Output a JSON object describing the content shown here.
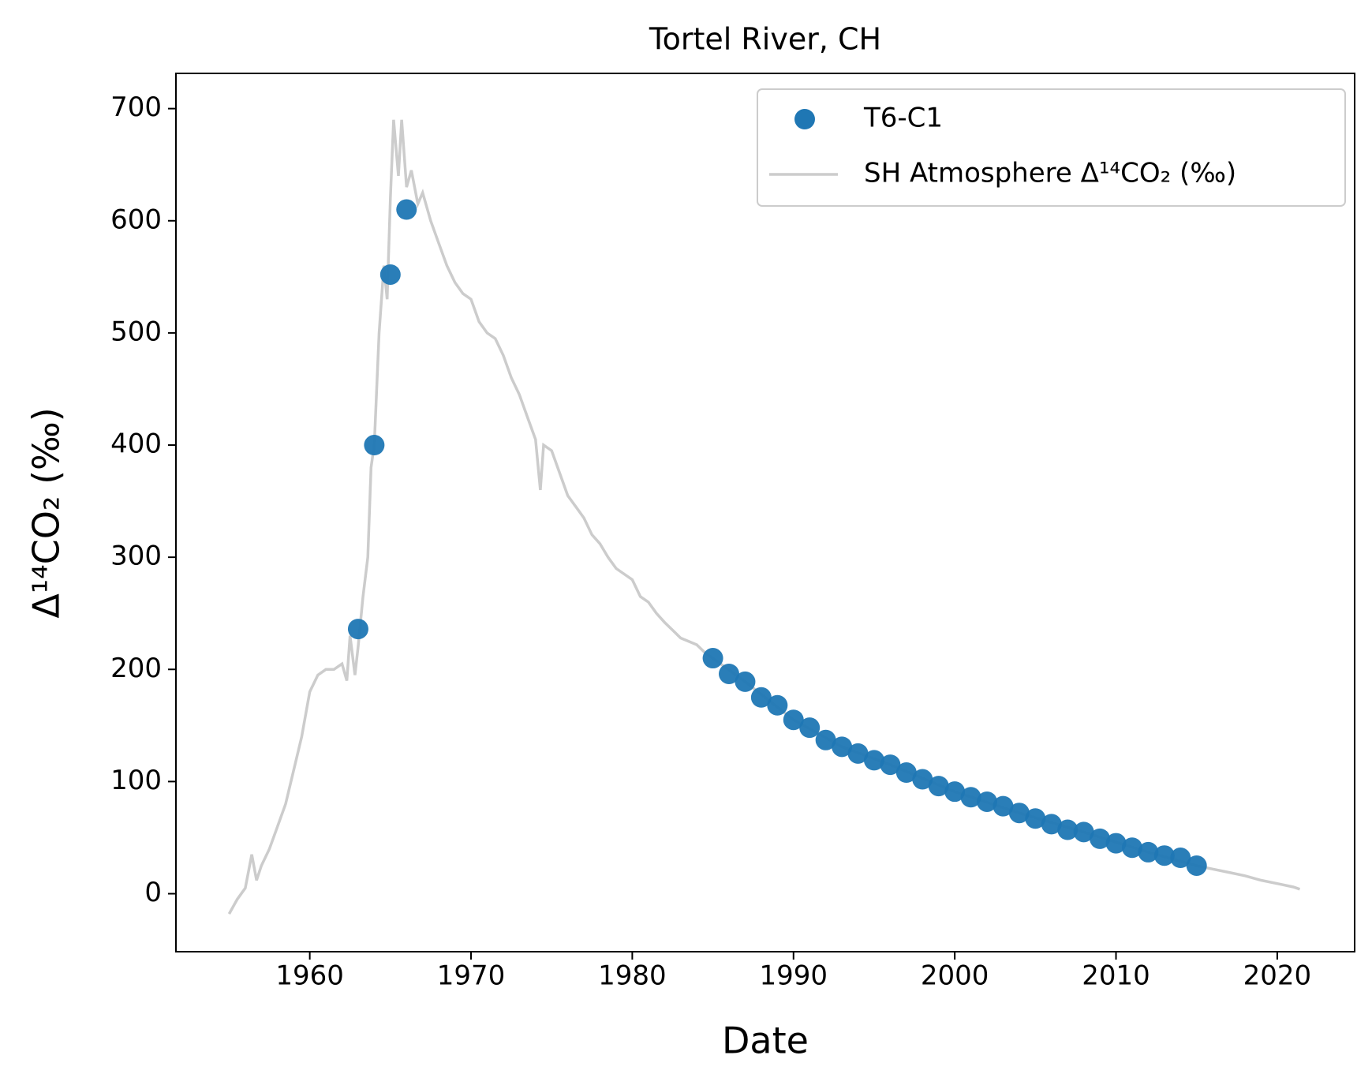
{
  "chart_data": {
    "type": "scatter",
    "title": "Tortel River, CH",
    "x_label": "Date",
    "y_label": "Δ¹⁴CO₂ (‰)",
    "legend": "upper right",
    "xlim": [
      1951.7,
      2024.8
    ],
    "ylim": [
      -51.7,
      731.4
    ],
    "xticks": [
      1960,
      1970,
      1980,
      1990,
      2000,
      2010,
      2020
    ],
    "yticks": [
      0,
      100,
      200,
      300,
      400,
      500,
      600,
      700
    ],
    "series": [
      {
        "name": "T6-C1",
        "type": "scatter",
        "color": "#1f77b4",
        "x": [
          1963,
          1964,
          1965,
          1966,
          1985,
          1986,
          1987,
          1988,
          1989,
          1990,
          1991,
          1992,
          1993,
          1994,
          1995,
          1996,
          1997,
          1998,
          1999,
          2000,
          2001,
          2002,
          2003,
          2004,
          2005,
          2006,
          2007,
          2008,
          2009,
          2010,
          2011,
          2012,
          2013,
          2014,
          2015
        ],
        "values": [
          236,
          400,
          552,
          610,
          210,
          196,
          189,
          175,
          168,
          155,
          148,
          137,
          131,
          125,
          119,
          115,
          108,
          102,
          96,
          91,
          86,
          82,
          78,
          72,
          67,
          62,
          57,
          55,
          49,
          45,
          41,
          37,
          34,
          32,
          25
        ]
      },
      {
        "name": "SH Atmosphere Δ¹⁴CO₂ (‰)",
        "type": "line",
        "color": "#cccccc",
        "x": [
          1955,
          1955.5,
          1956,
          1956.4,
          1956.7,
          1957,
          1957.5,
          1958,
          1958.5,
          1959,
          1959.5,
          1960,
          1960.5,
          1961,
          1961.5,
          1962,
          1962.3,
          1962.5,
          1962.8,
          1963,
          1963.3,
          1963.6,
          1963.8,
          1964,
          1964.3,
          1964.6,
          1964.8,
          1965,
          1965.2,
          1965.5,
          1965.7,
          1966,
          1966.3,
          1966.7,
          1967,
          1967.5,
          1968,
          1968.5,
          1969,
          1969.5,
          1970,
          1970.5,
          1971,
          1971.5,
          1972,
          1972.5,
          1973,
          1973.5,
          1974,
          1974.3,
          1974.5,
          1975,
          1975.5,
          1976,
          1976.5,
          1977,
          1977.5,
          1978,
          1978.5,
          1979,
          1979.5,
          1980,
          1980.5,
          1981,
          1981.5,
          1982,
          1982.5,
          1983,
          1983.5,
          1984,
          1984.5,
          1985,
          1987,
          1990,
          1993,
          1996,
          2000,
          2004,
          2008,
          2012,
          2015,
          2016,
          2017,
          2018,
          2019,
          2020,
          2021,
          2021.4
        ],
        "values": [
          -18,
          -5,
          5,
          35,
          12,
          25,
          40,
          60,
          80,
          110,
          140,
          180,
          195,
          200,
          200,
          205,
          190,
          230,
          195,
          220,
          265,
          300,
          380,
          400,
          500,
          560,
          530,
          620,
          690,
          640,
          690,
          630,
          645,
          615,
          625,
          600,
          580,
          560,
          545,
          535,
          530,
          510,
          500,
          495,
          480,
          460,
          445,
          425,
          405,
          360,
          400,
          395,
          375,
          355,
          345,
          335,
          320,
          312,
          300,
          290,
          285,
          280,
          265,
          260,
          250,
          242,
          235,
          228,
          225,
          222,
          215,
          210,
          189,
          155,
          131,
          115,
          91,
          72,
          55,
          37,
          25,
          22,
          19,
          16,
          12,
          9,
          6,
          4
        ]
      }
    ]
  }
}
